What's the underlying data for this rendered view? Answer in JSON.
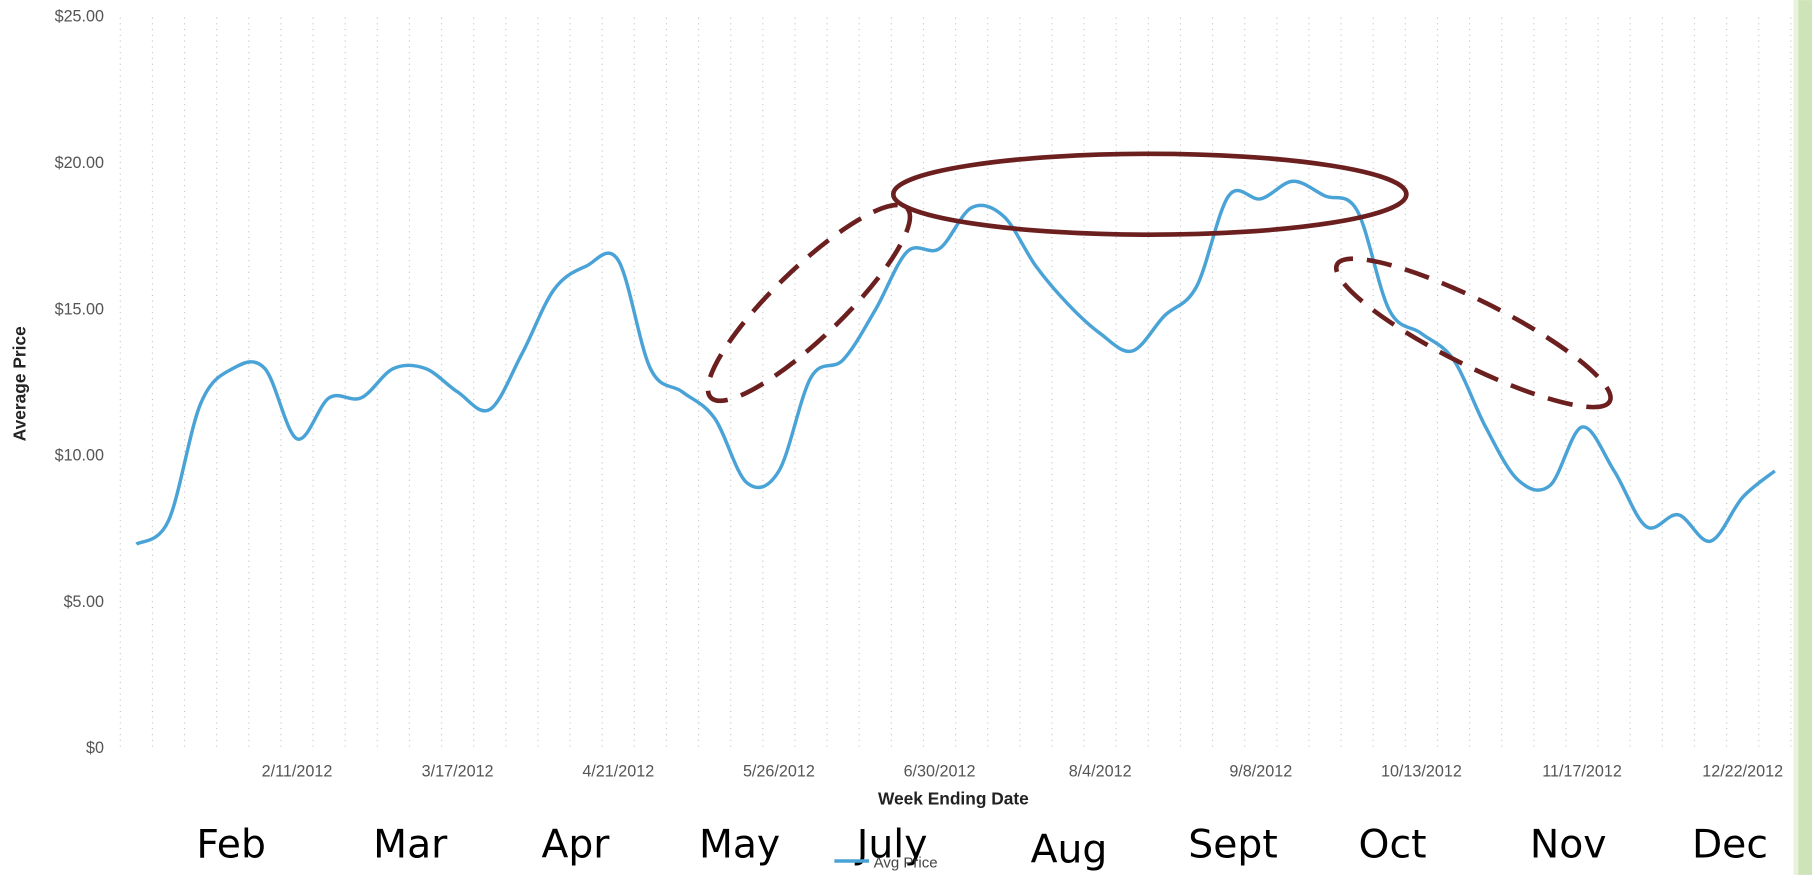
{
  "chart_data": {
    "type": "line",
    "xlabel": "Week Ending Date",
    "ylabel": "Average Price",
    "categories": [
      null,
      null,
      null,
      null,
      null,
      "2/11/2012",
      null,
      null,
      null,
      null,
      "3/17/2012",
      null,
      null,
      null,
      null,
      "4/21/2012",
      null,
      null,
      null,
      null,
      "5/26/2012",
      null,
      null,
      null,
      null,
      "6/30/2012",
      null,
      null,
      null,
      null,
      "8/4/2012",
      null,
      null,
      null,
      null,
      "9/8/2012",
      null,
      null,
      null,
      null,
      "10/13/2012",
      null,
      null,
      null,
      null,
      "11/17/2012",
      null,
      null,
      null,
      null,
      "12/22/2012",
      null
    ],
    "series": [
      {
        "name": "Avg Price",
        "color": "#4aa3d6",
        "values": [
          7.0,
          7.8,
          11.8,
          13.0,
          13.0,
          10.6,
          12.0,
          12.0,
          13.0,
          13.0,
          12.2,
          11.6,
          13.5,
          15.7,
          16.5,
          16.7,
          13.0,
          12.2,
          11.3,
          9.1,
          9.5,
          12.7,
          13.3,
          15.0,
          17.0,
          17.1,
          18.5,
          18.2,
          16.5,
          15.2,
          14.2,
          13.6,
          14.8,
          15.8,
          18.9,
          18.8,
          19.4,
          18.9,
          18.4,
          15.0,
          14.2,
          13.3,
          11.0,
          9.2,
          9.0,
          11.0,
          9.5,
          7.6,
          8.0,
          7.1,
          8.6,
          9.5
        ]
      }
    ],
    "ylim": [
      0,
      25
    ],
    "yticks": [
      {
        "value": 0,
        "label": "$0"
      },
      {
        "value": 5,
        "label": "$5.00"
      },
      {
        "value": 10,
        "label": "$10.00"
      },
      {
        "value": 15,
        "label": "$15.00"
      },
      {
        "value": 20,
        "label": "$20.00"
      },
      {
        "value": 25,
        "label": "$25.00"
      }
    ],
    "grid": true,
    "legend": "bottom",
    "annotations": [
      "Feb",
      "Mar",
      "Apr",
      "May",
      "July",
      "Aug",
      "Sept",
      "Oct",
      "Nov",
      "Dec"
    ]
  }
}
